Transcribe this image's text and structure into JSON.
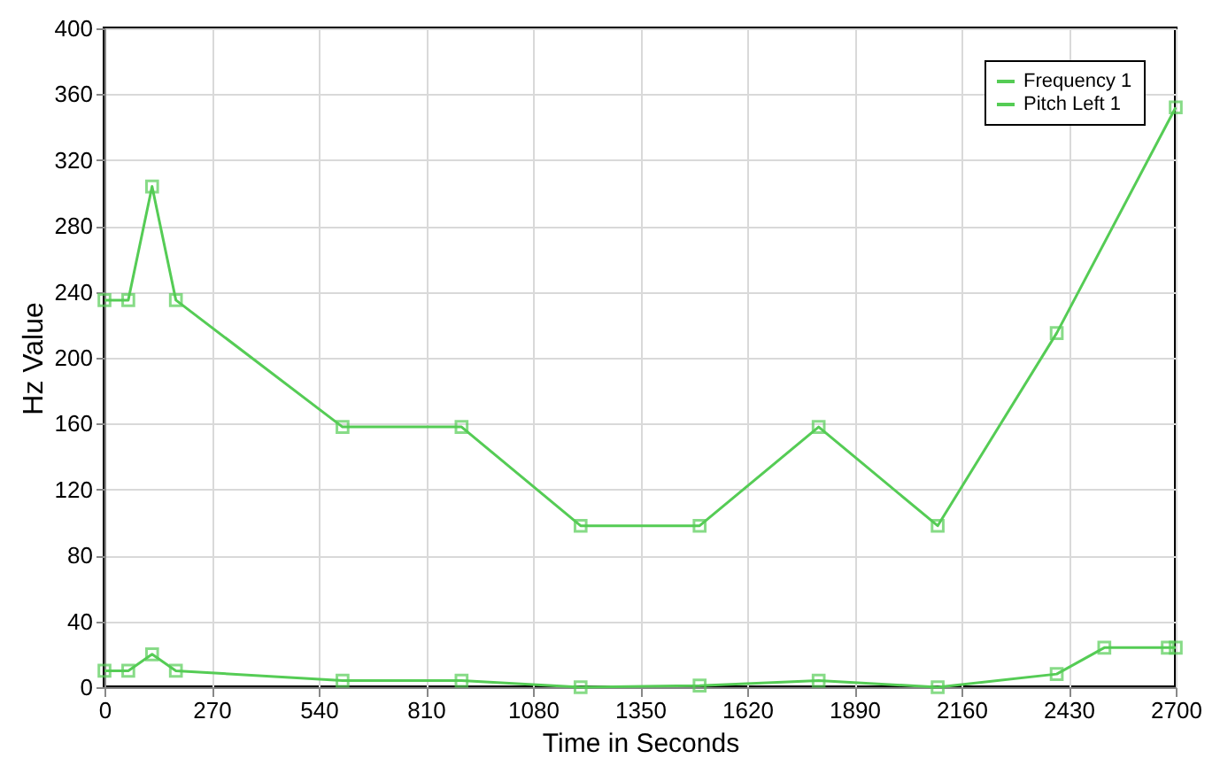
{
  "chart_data": {
    "type": "line",
    "xlabel": "Time in Seconds",
    "ylabel": "Hz Value",
    "xlim": [
      0,
      2700
    ],
    "xticks": [
      0,
      270,
      540,
      810,
      1080,
      1350,
      1620,
      1890,
      2160,
      2430,
      2700
    ],
    "ylim": [
      0,
      400
    ],
    "yticks": [
      0,
      40,
      80,
      120,
      160,
      200,
      240,
      280,
      320,
      360,
      400
    ],
    "grid": true,
    "legend": "top right",
    "marker": "square",
    "line_style": "solid",
    "series": [
      {
        "name": "Frequency 1",
        "color": "#55cc55",
        "x": [
          0,
          60,
          120,
          180,
          600,
          900,
          1200,
          1500,
          1800,
          2100,
          2400,
          2700
        ],
        "values": [
          235,
          235,
          304,
          235,
          158,
          158,
          98,
          98,
          158,
          98,
          215,
          352
        ]
      },
      {
        "name": "Pitch Left 1",
        "color": "#55cc55",
        "x": [
          0,
          60,
          120,
          180,
          600,
          900,
          1200,
          1500,
          1800,
          2100,
          2400,
          2520,
          2680,
          2700
        ],
        "values": [
          10,
          10,
          20,
          10,
          4,
          4,
          0,
          1,
          4,
          0,
          8,
          24,
          24,
          24
        ]
      }
    ]
  }
}
